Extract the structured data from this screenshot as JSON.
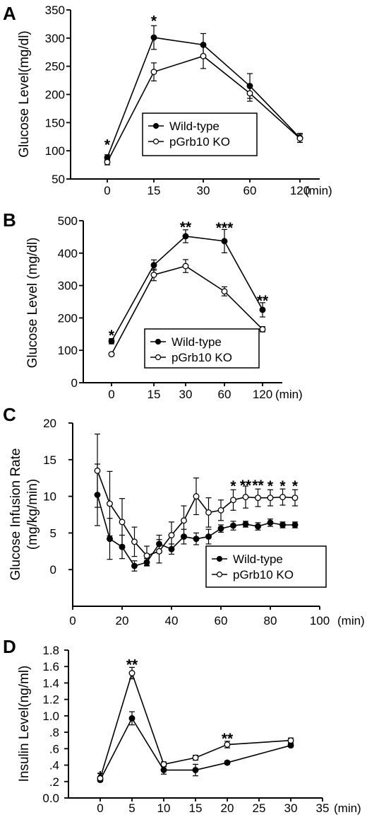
{
  "chart_data": [
    {
      "panel": "A",
      "type": "line",
      "ylabel": "Glucose Level(mg/dl)",
      "xunit": "(min)",
      "categories": [
        "0",
        "15",
        "30",
        "60",
        "120"
      ],
      "ylim": [
        50,
        350
      ],
      "yticks": [
        "50",
        "100",
        "150",
        "200",
        "250",
        "300",
        "350"
      ],
      "series": [
        {
          "name": "Wild-type",
          "marker": "filled",
          "values": [
            88,
            301,
            288,
            215,
            123
          ],
          "err": [
            5,
            21,
            20,
            22,
            8
          ]
        },
        {
          "name": "pGrb10 KO",
          "marker": "open",
          "values": [
            80,
            240,
            268,
            202,
            122
          ],
          "err": [
            5,
            16,
            22,
            14,
            7
          ]
        }
      ],
      "annotations": [
        {
          "category": "0",
          "text": "*",
          "y": 112
        },
        {
          "category": "15",
          "text": "*",
          "y": 332
        }
      ],
      "legend": "center"
    },
    {
      "panel": "B",
      "type": "line",
      "ylabel": "Glucose Level (mg/dl)",
      "xunit": "(min)",
      "categories": [
        "0",
        "15",
        "30",
        "60",
        "120"
      ],
      "ylim": [
        0,
        500
      ],
      "yticks": [
        "0",
        "100",
        "200",
        "300",
        "400",
        "500"
      ],
      "series": [
        {
          "name": "Wild-type",
          "marker": "filled",
          "values": [
            128,
            363,
            452,
            437,
            225
          ],
          "err": [
            8,
            16,
            20,
            36,
            22
          ]
        },
        {
          "name": "pGrb10 KO",
          "marker": "open",
          "values": [
            88,
            333,
            360,
            282,
            165
          ],
          "err": [
            4,
            18,
            20,
            14,
            8
          ]
        }
      ],
      "annotations": [
        {
          "category": "0",
          "text": "*",
          "y": 148
        },
        {
          "category": "30",
          "text": "**",
          "y": 482
        },
        {
          "category": "60",
          "text": "***",
          "y": 480
        },
        {
          "category": "120",
          "text": "**",
          "y": 255
        }
      ],
      "legend": "bottom-center"
    },
    {
      "panel": "C",
      "type": "line",
      "ylabel": "Glucose Infusion Rate (mg/kg/min)",
      "xunit": "(min)",
      "xlim": [
        0,
        100
      ],
      "xticks": [
        "0",
        "20",
        "40",
        "60",
        "80",
        "100"
      ],
      "ylim": [
        -5,
        20
      ],
      "yticks": [
        "0",
        "5",
        "10",
        "15",
        "20"
      ],
      "series": [
        {
          "name": "Wild-type",
          "marker": "filled",
          "x": [
            10,
            15,
            20,
            25,
            30,
            35,
            40,
            45,
            50,
            55,
            60,
            65,
            70,
            75,
            80,
            85,
            90
          ],
          "values": [
            10.2,
            4.2,
            3.1,
            0.5,
            1.0,
            3.5,
            2.8,
            4.5,
            4.2,
            4.5,
            5.6,
            6.0,
            6.2,
            5.9,
            6.4,
            6.1,
            6.1
          ],
          "err": [
            4.2,
            2.8,
            1.6,
            0.7,
            0.5,
            1.2,
            0.7,
            1.0,
            0.8,
            1.0,
            0.5,
            0.6,
            0.4,
            0.5,
            0.5,
            0.4,
            0.4
          ]
        },
        {
          "name": "pGrb10 KO",
          "marker": "open",
          "x": [
            10,
            15,
            20,
            25,
            30,
            35,
            40,
            45,
            50,
            55,
            60,
            65,
            70,
            75,
            80,
            85,
            90
          ],
          "values": [
            13.5,
            9.0,
            6.5,
            3.8,
            1.9,
            2.5,
            4.7,
            6.7,
            10.0,
            7.8,
            8.1,
            9.5,
            9.9,
            9.8,
            9.8,
            9.9,
            9.8
          ],
          "err": [
            5.0,
            4.4,
            3.2,
            2.0,
            1.3,
            1.6,
            1.8,
            2.0,
            2.5,
            2.0,
            1.4,
            1.4,
            1.5,
            1.2,
            1.1,
            1.1,
            1.1
          ]
        }
      ],
      "annotations": [
        {
          "x": 65,
          "text": "*",
          "y": 11.5
        },
        {
          "x": 70,
          "text": "**",
          "y": 11.6
        },
        {
          "x": 75,
          "text": "**",
          "y": 11.6
        },
        {
          "x": 80,
          "text": "*",
          "y": 11.5
        },
        {
          "x": 85,
          "text": "*",
          "y": 11.5
        },
        {
          "x": 90,
          "text": "*",
          "y": 11.5
        }
      ],
      "legend": "bottom-right"
    },
    {
      "panel": "D",
      "type": "line",
      "ylabel": "Insulin Level(ng/ml)",
      "xunit": "(min)",
      "xlim": [
        -5,
        35
      ],
      "xticks": [
        "0",
        "5",
        "10",
        "15",
        "20",
        "25",
        "30",
        "35"
      ],
      "ylim": [
        0.0,
        1.8
      ],
      "yticks": [
        "0.0",
        ".2",
        ".4",
        ".6",
        ".8",
        "1.0",
        "1.2",
        "1.4",
        "1.6",
        "1.8"
      ],
      "series": [
        {
          "name": "Wild-type",
          "marker": "filled",
          "x": [
            0,
            5,
            10,
            15,
            20,
            30
          ],
          "values": [
            0.22,
            0.97,
            0.34,
            0.34,
            0.43,
            0.64
          ],
          "err": [
            0.02,
            0.08,
            0.05,
            0.07,
            0.02,
            0.02
          ]
        },
        {
          "name": "pGrb10 KO",
          "marker": "open",
          "x": [
            0,
            5,
            10,
            15,
            20,
            30
          ],
          "values": [
            0.24,
            1.52,
            0.41,
            0.49,
            0.65,
            0.7
          ],
          "err": [
            0.02,
            0.07,
            0.03,
            0.03,
            0.04,
            0.03
          ]
        }
      ],
      "annotations": [
        {
          "x": 0,
          "text": "*",
          "y": 0.27
        },
        {
          "x": 5,
          "text": "**",
          "y": 1.63
        },
        {
          "x": 20,
          "text": "**",
          "y": 0.73
        }
      ],
      "legend": "none"
    }
  ],
  "colors": {
    "ink": "#000000",
    "background": "#ffffff"
  }
}
